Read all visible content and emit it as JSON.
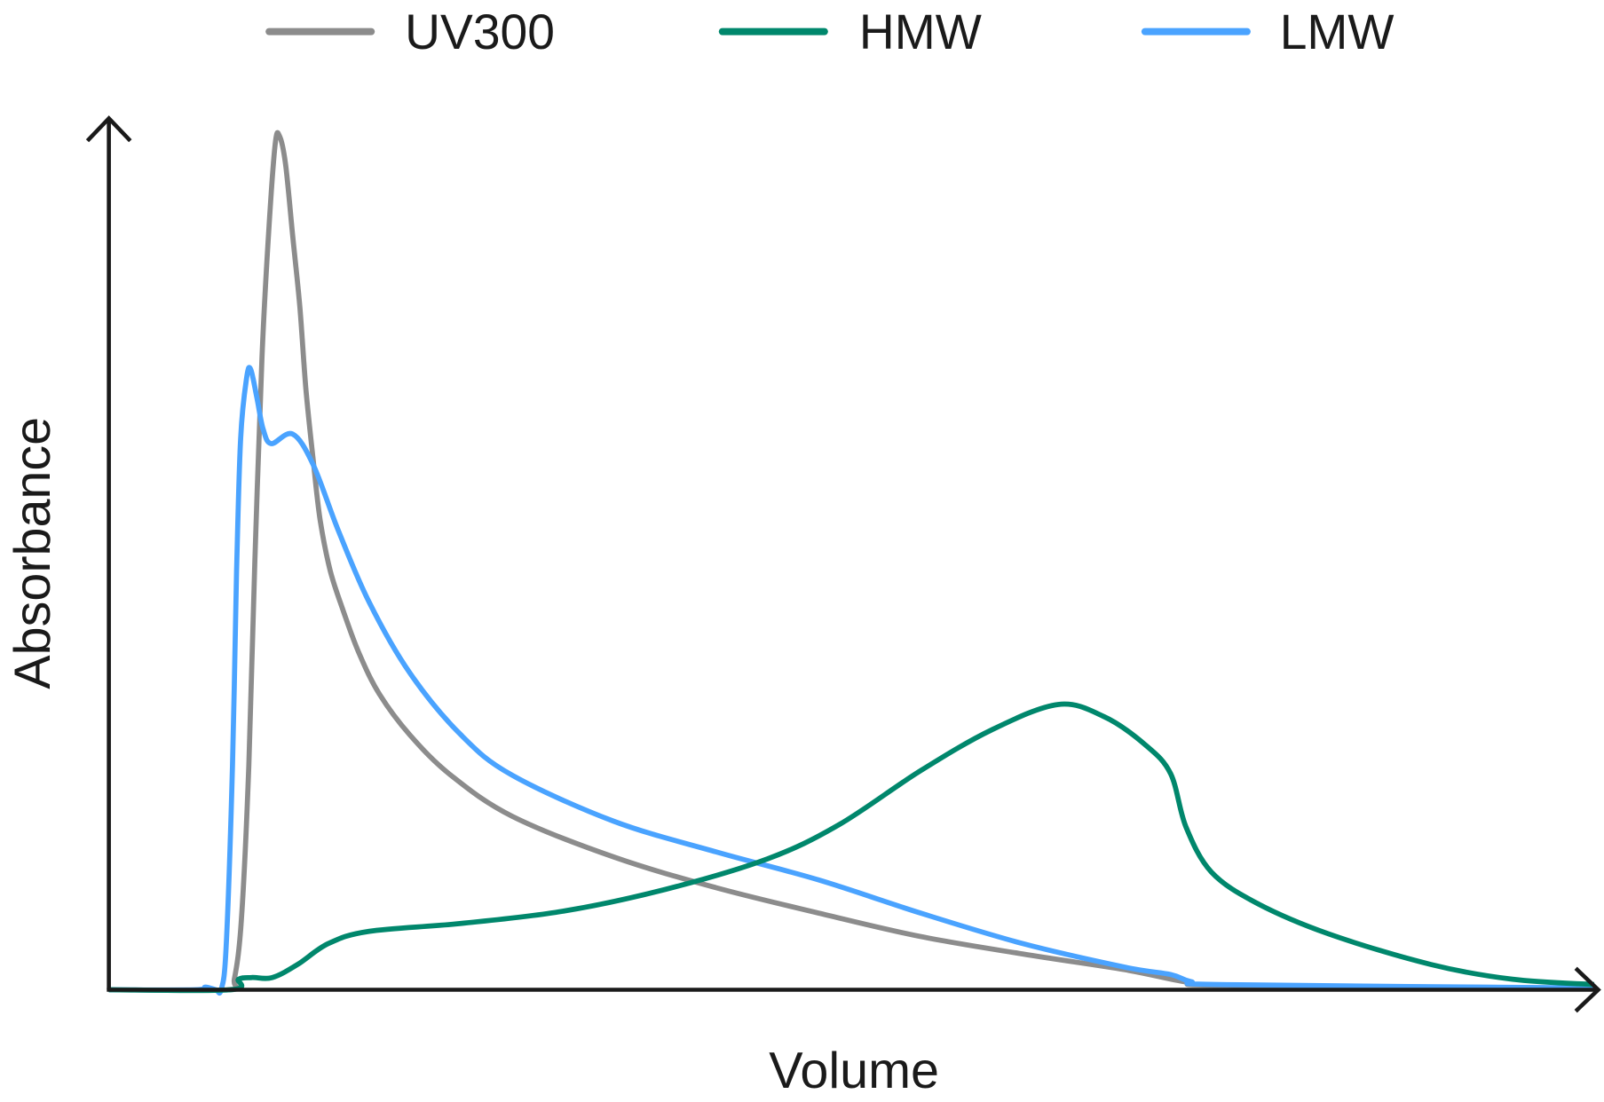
{
  "chart_data": {
    "type": "line",
    "title": "",
    "xlabel": "Volume",
    "ylabel": "Absorbance",
    "xlim": [
      0,
      100
    ],
    "ylim": [
      0,
      100
    ],
    "ticks_shown": false,
    "grid": false,
    "legend_placement": "top",
    "series": [
      {
        "name": "UV300",
        "color": "#8c8c8c",
        "x": [
          0,
          8.04,
          8.45,
          8.93,
          9.42,
          9.83,
          10.31,
          10.79,
          11.2,
          11.48,
          11.89,
          12.37,
          12.85,
          13.26,
          13.75,
          14.23,
          14.91,
          15.81,
          16.84,
          18.21,
          20.27,
          23.02,
          27.15,
          34.02,
          40.89,
          47.77,
          54.64,
          61.51,
          68.38,
          72.51,
          75.26,
          100
        ],
        "y": [
          0,
          0,
          1.2,
          8.2,
          25.7,
          49.1,
          72.5,
          87.7,
          97.0,
          97.9,
          94.7,
          86.5,
          78.4,
          69.0,
          60.8,
          53.8,
          48.0,
          43.3,
          38.6,
          33.9,
          29.2,
          24.6,
          19.9,
          15.2,
          11.7,
          8.8,
          6.1,
          4.1,
          2.3,
          0.9,
          0.5,
          0.2
        ]
      },
      {
        "name": "HMW",
        "color": "#00876c",
        "x": [
          0,
          8.2,
          8.73,
          9.62,
          11.0,
          12.71,
          14.78,
          17.53,
          23.71,
          30.58,
          37.46,
          44.33,
          49.14,
          54.64,
          59.45,
          63.92,
          67.01,
          69.76,
          71.48,
          72.51,
          74.23,
          77.32,
          82.13,
          89.0,
          94.5,
          100
        ],
        "y": [
          0,
          0,
          1.2,
          1.4,
          1.4,
          2.9,
          5.3,
          6.7,
          7.6,
          9.0,
          11.5,
          15.0,
          18.9,
          25.1,
          29.8,
          32.7,
          31.3,
          28.1,
          24.8,
          18.7,
          13.5,
          9.9,
          6.4,
          2.9,
          1.2,
          0.6
        ]
      },
      {
        "name": "LMW",
        "color": "#4aa3ff",
        "x": [
          0,
          5.8,
          6.5,
          7.2,
          7.56,
          7.9,
          8.32,
          8.6,
          8.87,
          9.28,
          9.55,
          9.97,
          10.38,
          10.93,
          12.37,
          13.75,
          15.46,
          17.53,
          20.27,
          23.71,
          27.15,
          34.02,
          40.89,
          47.77,
          54.64,
          61.51,
          68.38,
          71.48,
          72.85,
          75.26,
          100
        ],
        "y": [
          0,
          0,
          0.3,
          0,
          0,
          5.0,
          25.7,
          48.0,
          63.2,
          70.2,
          71.1,
          67.8,
          64.3,
          62.6,
          63.7,
          60.2,
          52.6,
          44.4,
          36.3,
          29.2,
          24.6,
          19.3,
          15.8,
          12.6,
          8.8,
          5.3,
          2.6,
          1.75,
          0.94,
          0.58,
          0.2
        ]
      }
    ]
  }
}
